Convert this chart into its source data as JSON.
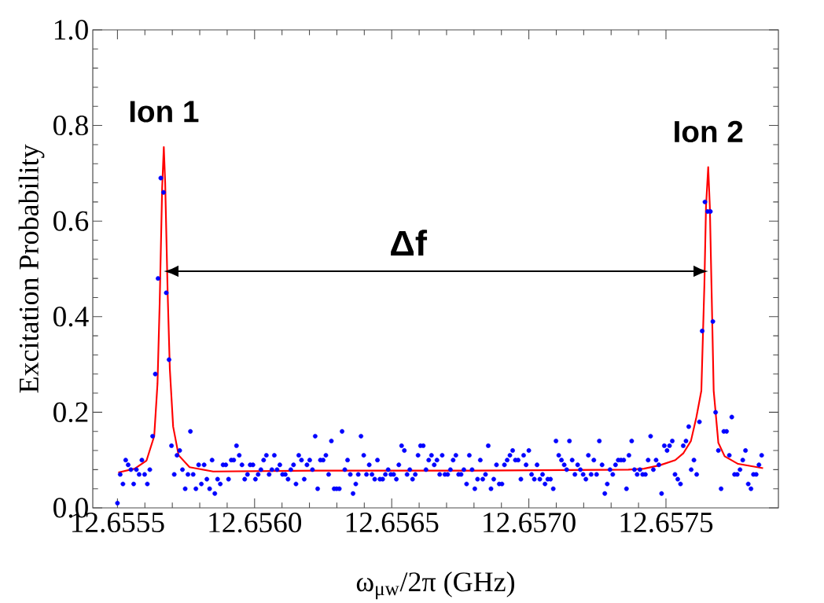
{
  "chart_data": {
    "type": "scatter",
    "xlabel": "ω$_{μw}$/2π (GHz)",
    "ylabel": "Excitation Probability",
    "xlim": [
      12.65541,
      12.65791
    ],
    "ylim": [
      0,
      1
    ],
    "xticks": [
      {
        "value": 12.6555,
        "label": "12.6555"
      },
      {
        "value": 12.656,
        "label": "12.6560"
      },
      {
        "value": 12.6565,
        "label": "12.6565"
      },
      {
        "value": 12.657,
        "label": "12.6570"
      },
      {
        "value": 12.6575,
        "label": "12.6575"
      }
    ],
    "yticks": [
      {
        "value": 0,
        "label": "0.0"
      },
      {
        "value": 0.2,
        "label": "0.2"
      },
      {
        "value": 0.4,
        "label": "0.4"
      },
      {
        "value": 0.6,
        "label": "0.6"
      },
      {
        "value": 0.8,
        "label": "0.8"
      },
      {
        "value": 1,
        "label": "1.0"
      }
    ],
    "series": [
      {
        "color": "#0000ff",
        "marker": "circle",
        "x": [
          12.6555,
          12.65551,
          12.65552,
          12.65553,
          12.655539,
          12.655549,
          12.655559,
          12.655569,
          12.655579,
          12.655589,
          12.655599,
          12.655609,
          12.655618,
          12.655628,
          12.655638,
          12.655648,
          12.655658,
          12.655668,
          12.655678,
          12.655688,
          12.655697,
          12.655707,
          12.655717,
          12.655727,
          12.655737,
          12.655747,
          12.655757,
          12.655766,
          12.655776,
          12.655786,
          12.655796,
          12.655806,
          12.655816,
          12.655826,
          12.655836,
          12.655845,
          12.655855,
          12.655865,
          12.655875,
          12.655885,
          12.655895,
          12.655905,
          12.655915,
          12.655924,
          12.655934,
          12.655944,
          12.655954,
          12.655964,
          12.655974,
          12.655984,
          12.655994,
          12.656003,
          12.656013,
          12.656023,
          12.656033,
          12.656043,
          12.656053,
          12.656063,
          12.656072,
          12.656082,
          12.656092,
          12.656102,
          12.656112,
          12.656122,
          12.656132,
          12.656142,
          12.656151,
          12.656161,
          12.656171,
          12.656181,
          12.656191,
          12.656201,
          12.656211,
          12.656221,
          12.65623,
          12.65624,
          12.65625,
          12.65626,
          12.65627,
          12.65628,
          12.65629,
          12.656299,
          12.656309,
          12.656319,
          12.656329,
          12.656339,
          12.656349,
          12.656359,
          12.656369,
          12.656378,
          12.656388,
          12.656398,
          12.656408,
          12.656418,
          12.656428,
          12.656438,
          12.656448,
          12.656457,
          12.656467,
          12.656477,
          12.656487,
          12.656497,
          12.656507,
          12.656517,
          12.656526,
          12.656536,
          12.656546,
          12.656556,
          12.656566,
          12.656576,
          12.656586,
          12.656596,
          12.656605,
          12.656615,
          12.656625,
          12.656635,
          12.656645,
          12.656655,
          12.656665,
          12.656675,
          12.656684,
          12.656694,
          12.656704,
          12.656714,
          12.656724,
          12.656734,
          12.656744,
          12.656753,
          12.656763,
          12.656773,
          12.656783,
          12.656793,
          12.656803,
          12.656813,
          12.656823,
          12.656832,
          12.656842,
          12.656852,
          12.656862,
          12.656872,
          12.656882,
          12.656892,
          12.656902,
          12.656911,
          12.656921,
          12.656931,
          12.656941,
          12.656951,
          12.656961,
          12.656971,
          12.656981,
          12.65699,
          12.657,
          12.65701,
          12.65702,
          12.65703,
          12.65704,
          12.65705,
          12.657059,
          12.657069,
          12.657079,
          12.657089,
          12.657099,
          12.657109,
          12.657119,
          12.657129,
          12.657138,
          12.657148,
          12.657158,
          12.657168,
          12.657178,
          12.657188,
          12.657198,
          12.657208,
          12.657217,
          12.657227,
          12.657237,
          12.657247,
          12.657257,
          12.657267,
          12.657277,
          12.657286,
          12.657296,
          12.657306,
          12.657316,
          12.657326,
          12.657336,
          12.657346,
          12.657356,
          12.657365,
          12.657375,
          12.657385,
          12.657395,
          12.657405,
          12.657415,
          12.657425,
          12.657435,
          12.657444,
          12.657454,
          12.657464,
          12.657474,
          12.657484,
          12.657494,
          12.657504,
          12.657513,
          12.657523,
          12.657533,
          12.657543,
          12.657553,
          12.657563,
          12.657573,
          12.657583,
          12.657592,
          12.657602,
          12.657612,
          12.657622,
          12.657632,
          12.657642,
          12.657652,
          12.657662,
          12.657671,
          12.657681,
          12.657691,
          12.657701,
          12.657711,
          12.657721,
          12.657731,
          12.65774,
          12.65775,
          12.65776,
          12.65777,
          12.65778,
          12.65779,
          12.6578,
          12.65781,
          12.657819,
          12.657829,
          12.657839,
          12.657849
        ],
        "values": [
          0.01,
          0.07,
          0.05,
          0.1,
          0.09,
          0.08,
          0.05,
          0.08,
          0.07,
          0.1,
          0.07,
          0.05,
          0.08,
          0.15,
          0.28,
          0.48,
          0.69,
          0.66,
          0.45,
          0.31,
          0.13,
          0.07,
          0.11,
          0.12,
          0.08,
          0.04,
          0.07,
          0.16,
          0.07,
          0.04,
          0.09,
          0.05,
          0.09,
          0.06,
          0.04,
          0.1,
          0.03,
          0.06,
          0.05,
          0.09,
          0.09,
          0.06,
          0.1,
          0.1,
          0.13,
          0.11,
          0.09,
          0.06,
          0.07,
          0.09,
          0.09,
          0.06,
          0.07,
          0.08,
          0.1,
          0.11,
          0.07,
          0.08,
          0.11,
          0.08,
          0.09,
          0.07,
          0.07,
          0.06,
          0.08,
          0.09,
          0.05,
          0.11,
          0.1,
          0.06,
          0.09,
          0.1,
          0.08,
          0.15,
          0.04,
          0.1,
          0.1,
          0.11,
          0.07,
          0.14,
          0.04,
          0.04,
          0.04,
          0.16,
          0.08,
          0.1,
          0.07,
          0.03,
          0.05,
          0.07,
          0.15,
          0.11,
          0.07,
          0.09,
          0.07,
          0.06,
          0.1,
          0.06,
          0.06,
          0.07,
          0.08,
          0.07,
          0.07,
          0.06,
          0.09,
          0.13,
          0.12,
          0.07,
          0.08,
          0.06,
          0.07,
          0.11,
          0.13,
          0.13,
          0.08,
          0.1,
          0.11,
          0.09,
          0.1,
          0.07,
          0.11,
          0.07,
          0.07,
          0.08,
          0.1,
          0.11,
          0.07,
          0.07,
          0.08,
          0.05,
          0.11,
          0.08,
          0.04,
          0.06,
          0.1,
          0.06,
          0.07,
          0.13,
          0.04,
          0.06,
          0.09,
          0.05,
          0.05,
          0.09,
          0.1,
          0.11,
          0.12,
          0.1,
          0.1,
          0.06,
          0.11,
          0.09,
          0.12,
          0.07,
          0.06,
          0.09,
          0.06,
          0.07,
          0.05,
          0.06,
          0.06,
          0.04,
          0.14,
          0.11,
          0.1,
          0.09,
          0.08,
          0.14,
          0.1,
          0.07,
          0.09,
          0.08,
          0.07,
          0.06,
          0.11,
          0.07,
          0.1,
          0.07,
          0.14,
          0.09,
          0.03,
          0.05,
          0.08,
          0.07,
          0.09,
          0.1,
          0.1,
          0.1,
          0.04,
          0.11,
          0.14,
          0.08,
          0.07,
          0.08,
          0.07,
          0.07,
          0.1,
          0.15,
          0.08,
          0.1,
          0.09,
          0.03,
          0.13,
          0.12,
          0.13,
          0.14,
          0.07,
          0.06,
          0.05,
          0.13,
          0.14,
          0.17,
          0.08,
          0.1,
          0.07,
          0.18,
          0.37,
          0.64,
          0.62,
          0.62,
          0.39,
          0.2,
          0.12,
          0.04,
          0.16,
          0.16,
          0.11,
          0.19,
          0.07,
          0.07,
          0.08,
          0.1,
          0.12,
          0.05,
          0.04,
          0.07,
          0.07,
          0.09,
          0.11
        ]
      },
      {
        "type": "line",
        "color": "#ff0000",
        "marker": "none",
        "x": [
          12.655503,
          12.655563,
          12.655606,
          12.655634,
          12.655646,
          12.655654,
          12.655663,
          12.655669,
          12.655674,
          12.655683,
          12.655691,
          12.655703,
          12.655723,
          12.655763,
          12.655849,
          12.65622,
          12.656791,
          12.657363,
          12.65742,
          12.657477,
          12.657534,
          12.657563,
          12.657591,
          12.657611,
          12.657629,
          12.65764,
          12.657646,
          12.657654,
          12.65766,
          12.657666,
          12.657674,
          12.657691,
          12.657714,
          12.657763,
          12.657854
        ],
        "values": [
          0.074,
          0.082,
          0.099,
          0.15,
          0.26,
          0.43,
          0.67,
          0.755,
          0.68,
          0.45,
          0.29,
          0.17,
          0.11,
          0.085,
          0.076,
          0.078,
          0.078,
          0.08,
          0.082,
          0.089,
          0.1,
          0.114,
          0.14,
          0.19,
          0.245,
          0.465,
          0.63,
          0.713,
          0.63,
          0.465,
          0.245,
          0.136,
          0.108,
          0.092,
          0.083
        ]
      }
    ],
    "annotations": [
      "Ion 1",
      "Ion 2",
      "Δf"
    ]
  }
}
